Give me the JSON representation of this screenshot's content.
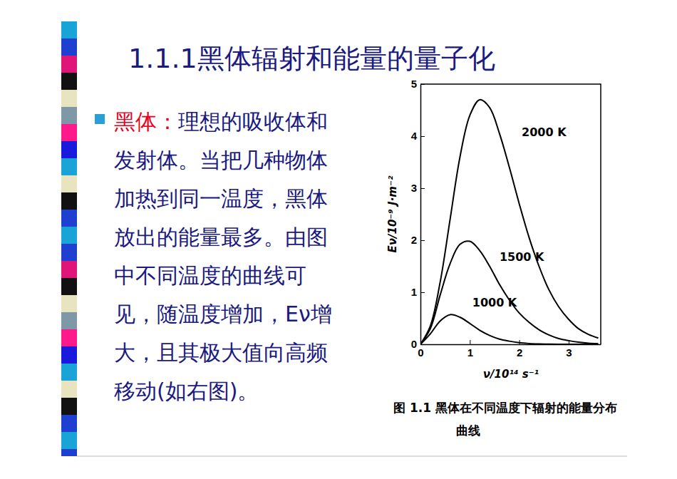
{
  "slide": {
    "title": "1.1.1黑体辐射和能量的量子化",
    "bullet": {
      "term": "黑体：",
      "lines": [
        "理想的吸收体和",
        "发射体。当把几种物体",
        "加热到同一温度，黑体",
        "放出的能量最多。由图",
        "中不同温度的曲线可",
        "见，随温度增加，Eν增",
        "大，且其极大值向高频",
        "移动(如右图)。"
      ]
    }
  },
  "chart_data": {
    "type": "line",
    "title": "图 1.1  黑体在不同温度下辐射的能量分布曲线",
    "x_label": "ν/10¹⁴ s⁻¹",
    "y_label": "Eν/10⁻⁹ J·m⁻²",
    "x": [
      0,
      0.2,
      0.4,
      0.6,
      0.8,
      1.0,
      1.2,
      1.4,
      1.6,
      1.8,
      2.0,
      2.2,
      2.4,
      2.6,
      2.8,
      3.0,
      3.2,
      3.4,
      3.6
    ],
    "series": [
      {
        "name": "2000 K",
        "color": "#000000",
        "values": [
          0,
          0.35,
          1.2,
          2.4,
          3.6,
          4.4,
          4.7,
          4.55,
          4.05,
          3.4,
          2.7,
          2.05,
          1.5,
          1.05,
          0.72,
          0.48,
          0.3,
          0.19,
          0.12
        ]
      },
      {
        "name": "1500 K",
        "color": "#000000",
        "values": [
          0,
          0.3,
          0.95,
          1.55,
          1.92,
          1.98,
          1.8,
          1.5,
          1.15,
          0.85,
          0.6,
          0.42,
          0.28,
          0.18,
          0.11,
          0.07,
          0.04,
          0.02,
          0.01
        ]
      },
      {
        "name": "1000 K",
        "color": "#000000",
        "values": [
          0,
          0.2,
          0.45,
          0.57,
          0.52,
          0.4,
          0.27,
          0.17,
          0.1,
          0.06,
          0.03,
          0.015,
          0.007,
          0.003,
          0.001,
          0,
          0,
          0,
          0
        ]
      }
    ],
    "xlim": [
      0,
      3.65
    ],
    "ylim": [
      0,
      5
    ],
    "xticks": [
      0,
      1,
      2,
      3
    ],
    "yticks": [
      0,
      1,
      2,
      3,
      4,
      5
    ],
    "grid": false
  }
}
